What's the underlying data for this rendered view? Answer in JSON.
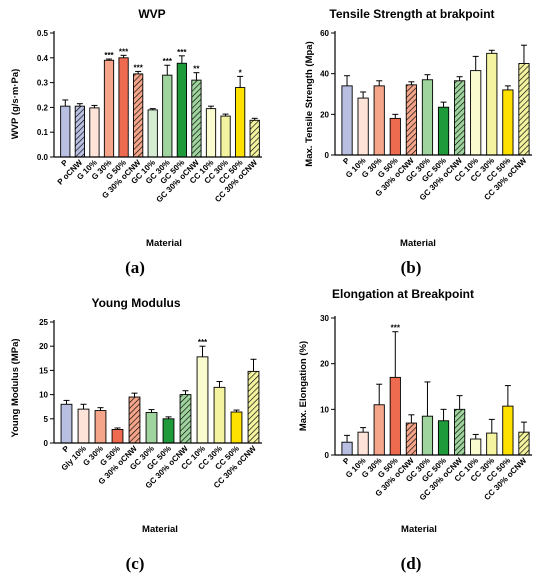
{
  "categories_order_note": "",
  "colors": {
    "P": "#b8bfe0",
    "P oCNW": "#b8bfe0",
    "G 10%": "#fde3d8",
    "G 30%": "#f4a58a",
    "G 50%": "#ef6b50",
    "G 30% oCNW": "#f4a58a",
    "GC 10%": "#d5ecd3",
    "GC 30%": "#9fd49e",
    "GC 50%": "#1f9a3a",
    "GC 30% oCNW": "#9fd49e",
    "CC 10%": "#fbfbd0",
    "CC 30%": "#f4f4a0",
    "CC 50%": "#ffe100",
    "CC 30% oCNW": "#f4f4a0"
  },
  "chart_data": [
    {
      "type": "bar",
      "panel_label": "(a)",
      "title": "WVP",
      "xlabel": "Material",
      "ylabel": "WVP (g/s·m·Pa)",
      "ylim": [
        0,
        0.5
      ],
      "yticks": [
        "0.0",
        "0.1",
        "0.2",
        "0.3",
        "0.4",
        "0.5"
      ],
      "categories": [
        "P",
        "P oCNW",
        "G 10%",
        "G 30%",
        "G 50%",
        "G 30% oCNW",
        "GC 10%",
        "GC 30%",
        "GC 50%",
        "GC 30% oCNW",
        "CC 10%",
        "CC 30%",
        "CC 50%",
        "CC 30% oCNW"
      ],
      "values": [
        0.205,
        0.205,
        0.198,
        0.39,
        0.4,
        0.335,
        0.19,
        0.33,
        0.378,
        0.31,
        0.195,
        0.165,
        0.28,
        0.148
      ],
      "errors": [
        0.025,
        0.01,
        0.01,
        0.005,
        0.01,
        0.01,
        0.005,
        0.04,
        0.03,
        0.03,
        0.01,
        0.008,
        0.045,
        0.008
      ],
      "hatched": [
        false,
        true,
        false,
        false,
        false,
        true,
        false,
        false,
        false,
        true,
        false,
        false,
        false,
        true
      ],
      "significance": [
        "",
        "",
        "",
        "***",
        "***",
        "***",
        "",
        "***",
        "***",
        "**",
        "",
        "",
        "*",
        ""
      ]
    },
    {
      "type": "bar",
      "panel_label": "(b)",
      "title": "Tensile Strength at brakpoint",
      "xlabel": "Material",
      "ylabel": "Max. Tensile Strength (Mpa)",
      "ylim": [
        0,
        60
      ],
      "yticks": [
        "0",
        "20",
        "40",
        "60"
      ],
      "categories": [
        "P",
        "G 10%",
        "G 30%",
        "G 50%",
        "G 30% oCNW",
        "GC 30%",
        "GC 50%",
        "GC 30% oCNW",
        "CC 10%",
        "CC 30%",
        "CC 50%",
        "CC 30% oCNW"
      ],
      "values": [
        34,
        28,
        34,
        18,
        34.5,
        37,
        23.5,
        36.5,
        41.5,
        50,
        32,
        45
      ],
      "errors": [
        5,
        3,
        2.5,
        2,
        1.5,
        2.5,
        2.5,
        2,
        7,
        1.5,
        2,
        9
      ],
      "hatched": [
        false,
        false,
        false,
        false,
        true,
        false,
        false,
        true,
        false,
        false,
        false,
        true
      ],
      "significance": [
        "",
        "",
        "",
        "",
        "",
        "",
        "",
        "",
        "",
        "",
        "",
        ""
      ]
    },
    {
      "type": "bar",
      "panel_label": "(c)",
      "title": "Young Modulus",
      "xlabel": "Material",
      "ylabel": "Young Modulus (MPa)",
      "ylim": [
        0,
        25
      ],
      "yticks": [
        "0",
        "5",
        "10",
        "15",
        "20",
        "25"
      ],
      "categories": [
        "P",
        "Gly 10%",
        "G 30%",
        "G 50%",
        "G 30% oCNW",
        "GC 30%",
        "GC 50%",
        "GC 30% oCNW",
        "CC 10%",
        "CC 30%",
        "CC 50%",
        "CC 30% oCNW"
      ],
      "values": [
        8,
        7,
        6.7,
        2.8,
        9.5,
        6.3,
        5,
        10,
        17.8,
        11.5,
        6.4,
        14.8
      ],
      "errors": [
        0.8,
        1.0,
        0.6,
        0.3,
        0.8,
        0.6,
        0.4,
        0.8,
        2.2,
        1.2,
        0.4,
        2.5
      ],
      "hatched": [
        false,
        false,
        false,
        false,
        true,
        false,
        false,
        true,
        false,
        false,
        false,
        true
      ],
      "significance": [
        "",
        "",
        "",
        "",
        "",
        "",
        "",
        "",
        "***",
        "",
        "",
        ""
      ]
    },
    {
      "type": "bar",
      "panel_label": "(d)",
      "title": "Elongation at Breakpoint",
      "xlabel": "Material",
      "ylabel": "Max. Elongation (%)",
      "ylim": [
        0,
        30
      ],
      "yticks": [
        "0",
        "10",
        "20",
        "30"
      ],
      "categories": [
        "P",
        "G 10%",
        "G 30%",
        "G 50%",
        "G 30% oCNW",
        "GC 30%",
        "GC 50%",
        "GC 30% oCNW",
        "CC 10%",
        "CC 30%",
        "CC 50%",
        "CC 30% oCNW"
      ],
      "values": [
        2.8,
        5,
        11,
        17,
        7,
        8.5,
        7.5,
        10,
        3.5,
        4.8,
        10.7,
        5
      ],
      "errors": [
        1.5,
        1,
        4.5,
        10,
        1.8,
        7.5,
        2.5,
        3,
        1,
        3,
        4.5,
        2.2
      ],
      "hatched": [
        false,
        false,
        false,
        false,
        true,
        false,
        false,
        true,
        false,
        false,
        false,
        true
      ],
      "significance": [
        "",
        "",
        "",
        "***",
        "",
        "",
        "",
        "",
        "",
        "",
        "",
        ""
      ]
    }
  ]
}
